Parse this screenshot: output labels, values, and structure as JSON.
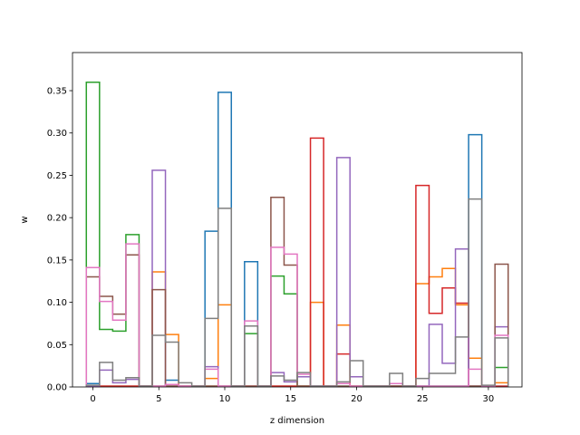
{
  "chart_data": {
    "type": "step",
    "title": "",
    "xlabel": "z dimension",
    "ylabel": "w",
    "xlim": [
      -1.55,
      32.55
    ],
    "ylim": [
      0,
      0.395
    ],
    "xticks": [
      0,
      5,
      10,
      15,
      20,
      25,
      30
    ],
    "yticks": [
      0.0,
      0.05,
      0.1,
      0.15,
      0.2,
      0.25,
      0.3,
      0.35
    ],
    "ytick_labels": [
      "0.00",
      "0.05",
      "0.10",
      "0.15",
      "0.20",
      "0.25",
      "0.30",
      "0.35"
    ],
    "xtick_labels": [
      "0",
      "5",
      "10",
      "15",
      "20",
      "25",
      "30"
    ],
    "x": [
      0,
      1,
      2,
      3,
      4,
      5,
      6,
      7,
      8,
      9,
      10,
      11,
      12,
      13,
      14,
      15,
      16,
      17,
      18,
      19,
      20,
      21,
      22,
      23,
      24,
      25,
      26,
      27,
      28,
      29,
      30,
      31
    ],
    "series": [
      {
        "color": "#1f77b4",
        "values": [
          0.004,
          0.001,
          0.001,
          0.001,
          0.001,
          0.001,
          0.008,
          0.001,
          0.001,
          0.184,
          0.348,
          0.001,
          0.148,
          0.001,
          0.001,
          0.001,
          0.001,
          0.001,
          0.001,
          0.001,
          0.001,
          0.001,
          0.001,
          0.001,
          0.001,
          0.001,
          0.001,
          0.001,
          0.001,
          0.298,
          0.001,
          0.001
        ]
      },
      {
        "color": "#ff7f0e",
        "values": [
          0.001,
          0.001,
          0.001,
          0.001,
          0.001,
          0.136,
          0.062,
          0.001,
          0.001,
          0.01,
          0.097,
          0.001,
          0.001,
          0.001,
          0.001,
          0.001,
          0.001,
          0.1,
          0.001,
          0.073,
          0.001,
          0.001,
          0.001,
          0.001,
          0.001,
          0.122,
          0.13,
          0.14,
          0.097,
          0.034,
          0.001,
          0.005
        ]
      },
      {
        "color": "#2ca02c",
        "values": [
          0.36,
          0.068,
          0.066,
          0.18,
          0.001,
          0.001,
          0.001,
          0.001,
          0.001,
          0.001,
          0.001,
          0.001,
          0.063,
          0.001,
          0.131,
          0.11,
          0.001,
          0.001,
          0.001,
          0.001,
          0.001,
          0.001,
          0.001,
          0.001,
          0.001,
          0.001,
          0.001,
          0.001,
          0.001,
          0.001,
          0.001,
          0.023
        ]
      },
      {
        "color": "#d62728",
        "values": [
          0.001,
          0.001,
          0.001,
          0.001,
          0.001,
          0.001,
          0.001,
          0.001,
          0.001,
          0.001,
          0.001,
          0.001,
          0.001,
          0.001,
          0.001,
          0.001,
          0.001,
          0.294,
          0.001,
          0.039,
          0.001,
          0.001,
          0.001,
          0.001,
          0.001,
          0.238,
          0.087,
          0.117,
          0.099,
          0.001,
          0.001,
          0.001
        ]
      },
      {
        "color": "#9467bd",
        "values": [
          0.001,
          0.02,
          0.005,
          0.009,
          0.001,
          0.256,
          0.001,
          0.001,
          0.001,
          0.024,
          0.001,
          0.001,
          0.001,
          0.001,
          0.017,
          0.006,
          0.012,
          0.001,
          0.001,
          0.271,
          0.012,
          0.001,
          0.001,
          0.001,
          0.001,
          0.001,
          0.074,
          0.028,
          0.163,
          0.001,
          0.001,
          0.071
        ]
      },
      {
        "color": "#8c564b",
        "values": [
          0.13,
          0.107,
          0.086,
          0.156,
          0.001,
          0.115,
          0.001,
          0.001,
          0.001,
          0.001,
          0.001,
          0.001,
          0.001,
          0.001,
          0.224,
          0.144,
          0.001,
          0.001,
          0.001,
          0.001,
          0.001,
          0.001,
          0.001,
          0.001,
          0.001,
          0.001,
          0.001,
          0.001,
          0.001,
          0.001,
          0.001,
          0.145
        ]
      },
      {
        "color": "#e377c2",
        "values": [
          0.141,
          0.101,
          0.079,
          0.169,
          0.001,
          0.001,
          0.003,
          0.001,
          0.001,
          0.021,
          0.001,
          0.001,
          0.078,
          0.001,
          0.165,
          0.157,
          0.015,
          0.001,
          0.001,
          0.004,
          0.001,
          0.001,
          0.001,
          0.004,
          0.001,
          0.001,
          0.001,
          0.001,
          0.001,
          0.021,
          0.001,
          0.061
        ]
      },
      {
        "color": "#7f7f7f",
        "values": [
          0.002,
          0.029,
          0.008,
          0.011,
          0.001,
          0.061,
          0.053,
          0.005,
          0.001,
          0.081,
          0.211,
          0.001,
          0.072,
          0.001,
          0.013,
          0.008,
          0.017,
          0.001,
          0.001,
          0.006,
          0.031,
          0.001,
          0.001,
          0.016,
          0.001,
          0.01,
          0.016,
          0.016,
          0.059,
          0.222,
          0.002,
          0.058
        ]
      }
    ]
  }
}
